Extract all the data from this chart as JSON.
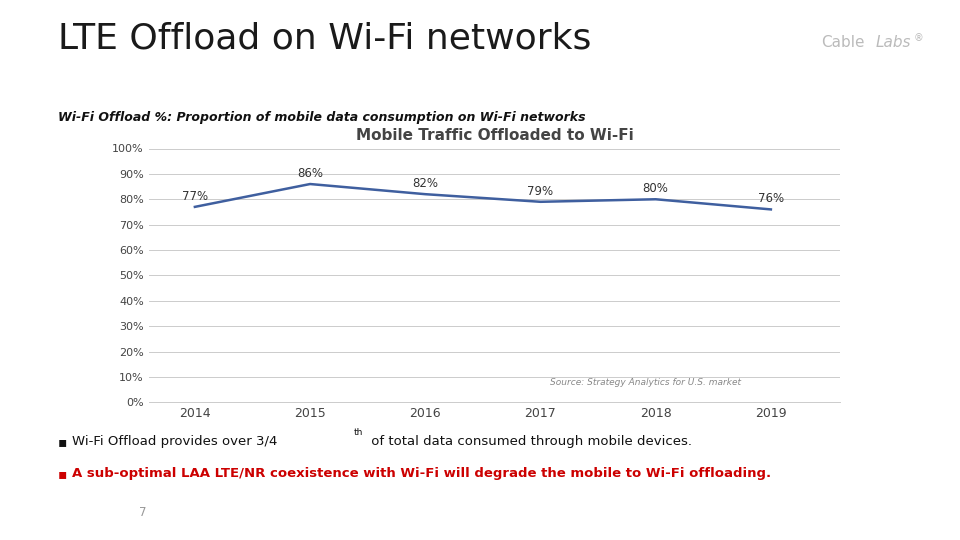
{
  "title": "LTE Offload on Wi-Fi networks",
  "subtitle": "Wi-Fi Offload %: Proportion of mobile data consumption on Wi-Fi networks",
  "chart_title": "Mobile Traffic Offloaded to Wi-Fi",
  "years": [
    2014,
    2015,
    2016,
    2017,
    2018,
    2019
  ],
  "values": [
    0.77,
    0.86,
    0.82,
    0.79,
    0.8,
    0.76
  ],
  "labels": [
    "77%",
    "86%",
    "82%",
    "79%",
    "80%",
    "76%"
  ],
  "line_color": "#3F5F9F",
  "background_color": "#FFFFFF",
  "source_text": "Source: Strategy Analytics for U.S. market",
  "bullet2": "A sub-optimal LAA LTE/NR coexistence with Wi-Fi will degrade the mobile to Wi-Fi offloading.",
  "bullet1_color": "#111111",
  "bullet2_color": "#CC0000",
  "red_bar_color": "#CC0000",
  "cablelabs_color": "#BBBBBB",
  "page_number": "7",
  "ylim": [
    0,
    1.0
  ],
  "yticks": [
    0.0,
    0.1,
    0.2,
    0.3,
    0.4,
    0.5,
    0.6,
    0.7,
    0.8,
    0.9,
    1.0
  ],
  "ytick_labels": [
    "0%",
    "10%",
    "20%",
    "30%",
    "40%",
    "50%",
    "60%",
    "70%",
    "80%",
    "90%",
    "100%"
  ]
}
